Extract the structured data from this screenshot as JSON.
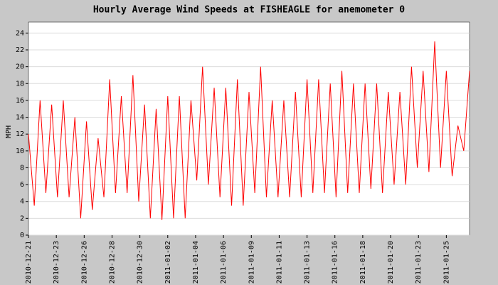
{
  "chart_data": {
    "type": "line",
    "title": "Hourly Average Wind Speeds at FISHEAGLE for anemometer 0",
    "y_label": "MPH",
    "x": [
      0,
      0.5,
      1,
      1.5,
      2,
      2.5,
      3,
      3.5,
      4,
      4.5,
      5,
      5.5,
      6,
      6.5,
      7,
      7.5,
      8,
      8.5,
      9,
      9.5,
      10,
      10.5,
      11,
      11.5,
      12,
      12.5,
      13,
      13.5,
      14,
      14.5,
      15,
      15.5,
      16,
      16.5,
      17,
      17.5,
      18,
      18.5,
      19,
      19.5,
      20,
      20.5,
      21,
      21.5,
      22,
      22.5,
      23,
      23.5,
      24,
      24.5,
      25,
      25.5,
      26,
      26.5,
      27,
      27.5,
      28,
      28.5,
      29,
      29.5,
      30,
      30.5,
      31,
      31.5,
      32,
      32.5,
      33,
      33.5,
      34,
      34.5,
      35,
      35.5,
      36,
      36.5,
      37,
      37.5,
      38
    ],
    "series": [
      {
        "name": "anemometer 0",
        "color": "#ff0000",
        "values": [
          12,
          3.5,
          16,
          5,
          15.5,
          4.5,
          16,
          4.5,
          14,
          2,
          13.5,
          3,
          11.5,
          4.5,
          18.5,
          5,
          16.5,
          5,
          19,
          4,
          15.5,
          2,
          15,
          1.8,
          16.5,
          2,
          16.5,
          2,
          16,
          6.5,
          20,
          6,
          17.5,
          4.5,
          17.5,
          3.5,
          18.5,
          3.5,
          17,
          5,
          20,
          4.5,
          16,
          4.5,
          16,
          4.5,
          17,
          4.5,
          18.5,
          5,
          18.5,
          5,
          18,
          4.5,
          19.5,
          5,
          18,
          5,
          18,
          5.5,
          18,
          5,
          17,
          6,
          17,
          6,
          20,
          8,
          19.5,
          7.5,
          23,
          8,
          19.5,
          7,
          13,
          10,
          19.5
        ]
      }
    ],
    "xlim": [
      0,
      38
    ],
    "xticks": [
      {
        "value": 0,
        "label": "2010-12-21"
      },
      {
        "value": 2.4,
        "label": "2010-12-23"
      },
      {
        "value": 4.8,
        "label": "2010-12-26"
      },
      {
        "value": 7.2,
        "label": "2010-12-28"
      },
      {
        "value": 9.6,
        "label": "2010-12-30"
      },
      {
        "value": 12,
        "label": "2011-01-02"
      },
      {
        "value": 14.4,
        "label": "2011-01-04"
      },
      {
        "value": 16.8,
        "label": "2011-01-06"
      },
      {
        "value": 19.2,
        "label": "2011-01-09"
      },
      {
        "value": 21.6,
        "label": "2011-01-11"
      },
      {
        "value": 24,
        "label": "2011-01-13"
      },
      {
        "value": 26.4,
        "label": "2011-01-16"
      },
      {
        "value": 28.8,
        "label": "2011-01-18"
      },
      {
        "value": 31.2,
        "label": "2011-01-20"
      },
      {
        "value": 33.6,
        "label": "2011-01-23"
      },
      {
        "value": 36,
        "label": "2011-01-25"
      }
    ],
    "ylim": [
      0,
      25.3
    ],
    "yticks": [
      0,
      2,
      4,
      6,
      8,
      10,
      12,
      14,
      16,
      18,
      20,
      22,
      24
    ],
    "grid": true
  }
}
